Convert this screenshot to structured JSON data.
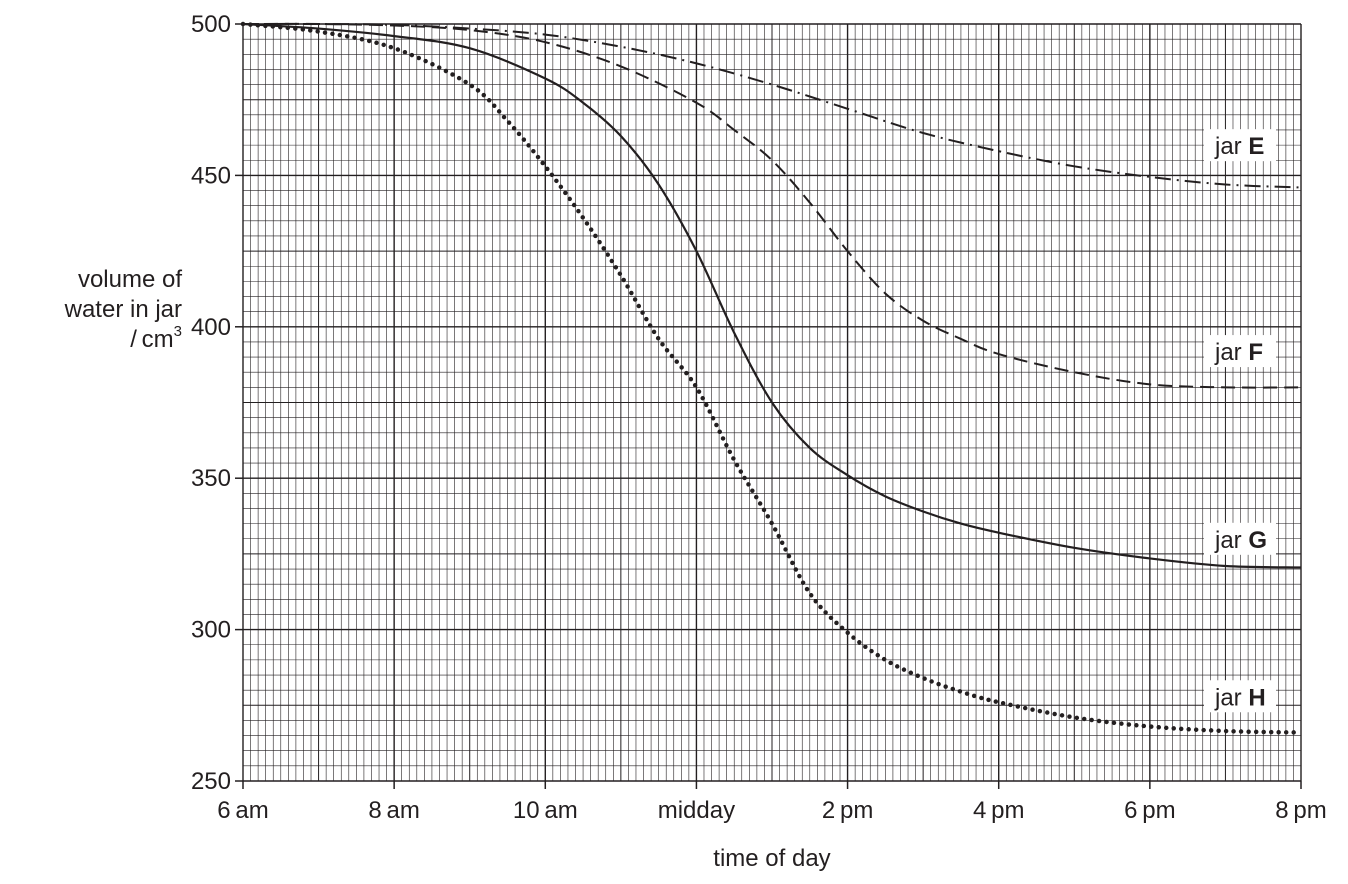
{
  "chart_data": {
    "type": "line",
    "xlabel": "time of day",
    "ylabel": {
      "line1": "volume of",
      "line2": "water in jar",
      "line3_prefix": "/ cm",
      "line3_sup": "3"
    },
    "x_ticks": [
      "6 am",
      "8 am",
      "10 am",
      "midday",
      "2 pm",
      "4 pm",
      "6 pm",
      "8 pm"
    ],
    "x_tick_hours": [
      6,
      8,
      10,
      12,
      14,
      16,
      18,
      20
    ],
    "xlim_hours": [
      6,
      20
    ],
    "y_ticks": [
      500,
      450,
      400,
      350,
      300,
      250
    ],
    "ylim": [
      250,
      500
    ],
    "grid": true,
    "series": [
      {
        "name": "jar E",
        "label_prefix": "jar",
        "label_letter": "E",
        "style": "dash-dot",
        "label_y": 458,
        "x": [
          6,
          7,
          8,
          9,
          10,
          11,
          12,
          13,
          14,
          15,
          16,
          17,
          18,
          19,
          20
        ],
        "y": [
          500,
          500,
          499.7,
          498.5,
          496.5,
          492.5,
          487,
          480,
          472,
          464,
          458,
          453,
          449.5,
          447,
          446
        ]
      },
      {
        "name": "jar F",
        "label_prefix": "jar",
        "label_letter": "F",
        "style": "dashed",
        "label_y": 390,
        "x": [
          6,
          7,
          8,
          9,
          10,
          11,
          12,
          12.5,
          13,
          13.5,
          14,
          14.5,
          15,
          15.5,
          16,
          17,
          18,
          19,
          20
        ],
        "y": [
          500,
          500,
          499.5,
          498,
          494,
          486,
          474,
          465,
          455,
          441,
          425,
          411,
          402,
          396,
          391,
          385,
          381,
          380,
          380
        ]
      },
      {
        "name": "jar G",
        "label_prefix": "jar",
        "label_letter": "G",
        "style": "solid",
        "label_y": 328,
        "x": [
          6,
          7,
          8,
          9,
          10,
          10.5,
          11,
          11.5,
          12,
          12.5,
          13,
          13.5,
          14,
          14.5,
          15,
          15.5,
          16,
          17,
          18,
          19,
          20
        ],
        "y": [
          500,
          498.5,
          496,
          492,
          482,
          474,
          463,
          447,
          425,
          398,
          375,
          360,
          351,
          344,
          339,
          335,
          332,
          327,
          323.5,
          321,
          320.5
        ]
      },
      {
        "name": "jar H",
        "label_prefix": "jar",
        "label_letter": "H",
        "style": "dotted",
        "label_y": 276,
        "x": [
          6,
          7,
          8,
          9,
          9.5,
          10,
          10.5,
          11,
          11.5,
          12,
          12.5,
          13,
          13.5,
          14,
          14.5,
          15,
          15.5,
          16,
          17,
          18,
          19,
          20
        ],
        "y": [
          500,
          497.5,
          492,
          480,
          468,
          453,
          436,
          417,
          396,
          380,
          356,
          335,
          312,
          299,
          290,
          284,
          279.5,
          276,
          271,
          268,
          266.5,
          266
        ]
      }
    ]
  }
}
